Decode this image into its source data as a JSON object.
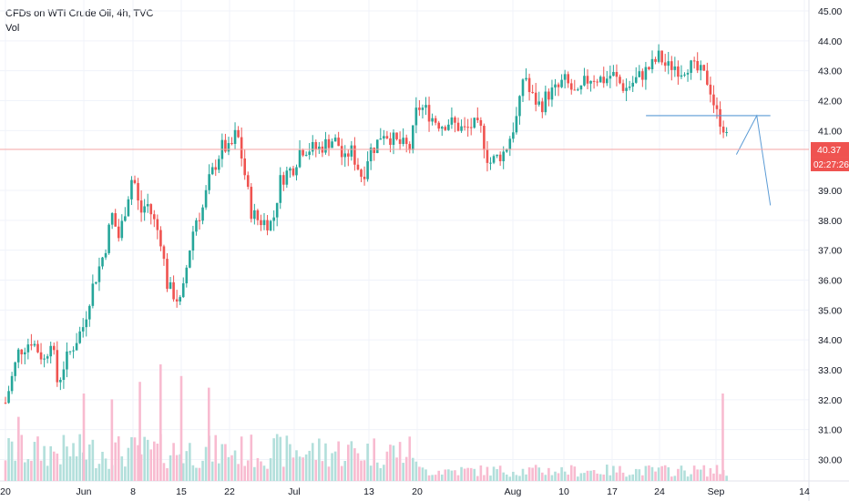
{
  "header": {
    "title": "CFDs on WTI Crude Oil, 4h, TVC",
    "volume_label": "Vol"
  },
  "colors": {
    "up": "#26a69a",
    "down": "#ef5350",
    "volume_up": "#b2dfdb",
    "volume_down": "#f8bbd0",
    "drawing": "#5b9bd5",
    "price_line": "#f5a5a5",
    "price_tag_bg": "#ef5350",
    "axis_text": "#131722",
    "grid": "#f0f3fa"
  },
  "chart_data": {
    "type": "candlestick",
    "symbol": "CFDs on WTI Crude Oil",
    "interval": "4h",
    "source": "TVC",
    "ylim": [
      29.6,
      45.2
    ],
    "y_ticks": [
      "45.00",
      "44.00",
      "43.00",
      "42.00",
      "41.00",
      "39.00",
      "38.00",
      "37.00",
      "36.00",
      "35.00",
      "34.00",
      "33.00",
      "32.00",
      "31.00",
      "30.00"
    ],
    "x_ticks": [
      "20",
      "Jun",
      "8",
      "15",
      "22",
      "Jul",
      "13",
      "20",
      "Aug",
      "10",
      "17",
      "24",
      "Sep",
      "14"
    ],
    "last_price": "40.37",
    "countdown": "02:27:26",
    "price_path": [
      {
        "x": "May 20",
        "y": 31.9
      },
      {
        "x": "May 22",
        "y": 33.6
      },
      {
        "x": "May 24",
        "y": 34.0
      },
      {
        "x": "May 26",
        "y": 33.3
      },
      {
        "x": "May 27",
        "y": 34.1
      },
      {
        "x": "May 28",
        "y": 32.5
      },
      {
        "x": "May 29",
        "y": 33.2
      },
      {
        "x": "Jun 1",
        "y": 34.5
      },
      {
        "x": "Jun 2",
        "y": 35.6
      },
      {
        "x": "Jun 4",
        "y": 37.0
      },
      {
        "x": "Jun 5",
        "y": 38.2
      },
      {
        "x": "Jun 6",
        "y": 37.4
      },
      {
        "x": "Jun 8",
        "y": 39.6
      },
      {
        "x": "Jun 9",
        "y": 38.2
      },
      {
        "x": "Jun 10",
        "y": 38.6
      },
      {
        "x": "Jun 11",
        "y": 38.0
      },
      {
        "x": "Jun 12",
        "y": 37.4
      },
      {
        "x": "Jun 13",
        "y": 35.8
      },
      {
        "x": "Jun 15",
        "y": 35.2
      },
      {
        "x": "Jun 16",
        "y": 36.8
      },
      {
        "x": "Jun 17",
        "y": 38.0
      },
      {
        "x": "Jun 18",
        "y": 38.3
      },
      {
        "x": "Jun 19",
        "y": 39.3
      },
      {
        "x": "Jun 21",
        "y": 40.5
      },
      {
        "x": "Jun 22",
        "y": 40.3
      },
      {
        "x": "Jun 23",
        "y": 41.0
      },
      {
        "x": "Jun 24",
        "y": 39.7
      },
      {
        "x": "Jun 25",
        "y": 38.3
      },
      {
        "x": "Jun 26",
        "y": 38.0
      },
      {
        "x": "Jun 28",
        "y": 37.9
      },
      {
        "x": "Jun 29",
        "y": 39.3
      },
      {
        "x": "Jun 30",
        "y": 39.6
      },
      {
        "x": "Jul 1",
        "y": 39.8
      },
      {
        "x": "Jul 2",
        "y": 40.4
      },
      {
        "x": "Jul 5",
        "y": 40.4
      },
      {
        "x": "Jul 7",
        "y": 40.7
      },
      {
        "x": "Jul 8",
        "y": 40.6
      },
      {
        "x": "Jul 9",
        "y": 39.9
      },
      {
        "x": "Jul 10",
        "y": 40.4
      },
      {
        "x": "Jul 12",
        "y": 39.4
      },
      {
        "x": "Jul 13",
        "y": 40.3
      },
      {
        "x": "Jul 14",
        "y": 40.5
      },
      {
        "x": "Jul 15",
        "y": 41.0
      },
      {
        "x": "Jul 16",
        "y": 40.8
      },
      {
        "x": "Jul 17",
        "y": 40.6
      },
      {
        "x": "Jul 19",
        "y": 40.4
      },
      {
        "x": "Jul 20",
        "y": 41.8
      },
      {
        "x": "Jul 21",
        "y": 41.7
      },
      {
        "x": "Jul 22",
        "y": 41.4
      },
      {
        "x": "Jul 23",
        "y": 41.2
      },
      {
        "x": "Jul 24",
        "y": 41.3
      },
      {
        "x": "Jul 26",
        "y": 41.0
      },
      {
        "x": "Jul 27",
        "y": 41.2
      },
      {
        "x": "Jul 28",
        "y": 41.0
      },
      {
        "x": "Jul 29",
        "y": 39.9
      },
      {
        "x": "Jul 30",
        "y": 40.1
      },
      {
        "x": "Jul 31",
        "y": 40.3
      },
      {
        "x": "Aug 2",
        "y": 41.6
      },
      {
        "x": "Aug 3",
        "y": 43.1
      },
      {
        "x": "Aug 4",
        "y": 42.2
      },
      {
        "x": "Aug 5",
        "y": 42.0
      },
      {
        "x": "Aug 6",
        "y": 41.8
      },
      {
        "x": "Aug 7",
        "y": 42.2
      },
      {
        "x": "Aug 9",
        "y": 42.4
      },
      {
        "x": "Aug 10",
        "y": 42.7
      },
      {
        "x": "Aug 11",
        "y": 42.4
      },
      {
        "x": "Aug 12",
        "y": 42.1
      },
      {
        "x": "Aug 13",
        "y": 42.6
      },
      {
        "x": "Aug 14",
        "y": 42.8
      },
      {
        "x": "Aug 16",
        "y": 42.7
      },
      {
        "x": "Aug 17",
        "y": 42.9
      },
      {
        "x": "Aug 18",
        "y": 42.6
      },
      {
        "x": "Aug 19",
        "y": 42.4
      },
      {
        "x": "Aug 20",
        "y": 42.6
      },
      {
        "x": "Aug 21",
        "y": 42.8
      },
      {
        "x": "Aug 23",
        "y": 43.2
      },
      {
        "x": "Aug 24",
        "y": 43.5
      },
      {
        "x": "Aug 25",
        "y": 43.1
      },
      {
        "x": "Aug 26",
        "y": 43.2
      },
      {
        "x": "Aug 27",
        "y": 43.0
      },
      {
        "x": "Aug 28",
        "y": 43.2
      },
      {
        "x": "Aug 30",
        "y": 42.9
      },
      {
        "x": "Aug 31",
        "y": 42.6
      },
      {
        "x": "Sep 1",
        "y": 41.6
      },
      {
        "x": "Sep 2",
        "y": 41.2
      },
      {
        "x": "Sep 3",
        "y": 40.37
      }
    ],
    "volume_spikes": [
      {
        "x": "May 22",
        "v": 0.55
      },
      {
        "x": "Jun 1",
        "v": 0.75
      },
      {
        "x": "Jun 5",
        "v": 0.7
      },
      {
        "x": "Jun 9",
        "v": 0.85
      },
      {
        "x": "Jun 12",
        "v": 1.0
      },
      {
        "x": "Jun 15",
        "v": 0.9
      },
      {
        "x": "Jun 19",
        "v": 0.8
      },
      {
        "x": "Sep 2",
        "v": 0.75
      }
    ],
    "drawings": [
      {
        "type": "horizontal-line",
        "price": 41.5,
        "from": "Aug 22",
        "to": "Sep 9"
      },
      {
        "type": "projection",
        "points": [
          {
            "x": "Sep 4",
            "y": 40.2
          },
          {
            "x": "Sep 7",
            "y": 41.5
          },
          {
            "x": "Sep 9",
            "y": 38.5
          }
        ]
      }
    ]
  }
}
